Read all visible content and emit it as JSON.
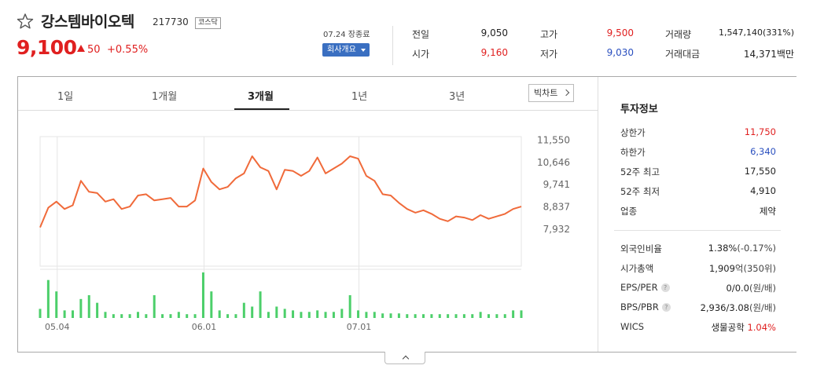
{
  "stock": {
    "name": "강스템바이오텍",
    "code": "217730",
    "market": "코스닥",
    "price": "9,100",
    "change": "50",
    "change_rate": "+0.55%",
    "date": "07.24 장종료",
    "overview_button": "회사개요"
  },
  "stats": {
    "prev_label": "전일",
    "prev_value": "9,050",
    "open_label": "시가",
    "open_value": "9,160",
    "high_label": "고가",
    "high_value": "9,500",
    "low_label": "저가",
    "low_value": "9,030",
    "volume_label": "거래량",
    "volume_value": "1,547,140(331%)",
    "amount_label": "거래대금",
    "amount_value": "14,371",
    "amount_unit": "백만"
  },
  "tabs": [
    "1일",
    "1개월",
    "3개월",
    "1년",
    "3년"
  ],
  "active_tab": "3개월",
  "big_chart_button": "빅차트",
  "invest": {
    "title": "투자정보",
    "rows": [
      {
        "label": "상한가",
        "value": "11,750",
        "color": "#e02020"
      },
      {
        "label": "하한가",
        "value": "6,340",
        "color": "#2a4fbf"
      },
      {
        "label": "52주 최고",
        "value": "17,550",
        "color": "#222222"
      },
      {
        "label": "52주 최저",
        "value": "4,910",
        "color": "#222222"
      },
      {
        "label": "업종",
        "value": "제약",
        "color": "#222222"
      }
    ],
    "rows2": [
      {
        "label": "외국인비율",
        "value": "1.38%",
        "extra": "(-0.17%)"
      },
      {
        "label": "시가총액",
        "value": "1,909",
        "extra": "억(350위)"
      },
      {
        "label": "EPS/PER",
        "value": "0/0.0",
        "extra": "(원/배)",
        "help": "?"
      },
      {
        "label": "BPS/PBR",
        "value": "2,936/3.08",
        "extra": "(원/배)",
        "help": "?"
      },
      {
        "label": "WICS",
        "value": "생물공학",
        "extra": "1.04%"
      }
    ]
  },
  "chart_data": {
    "type": "line",
    "y_ticks": [
      "11,550",
      "10,646",
      "9,741",
      "8,837",
      "7,932"
    ],
    "ylim": [
      7700,
      11700
    ],
    "x_ticks": [
      "05.04",
      "06.01",
      "07.01"
    ],
    "x_tick_index": [
      2,
      20,
      39
    ],
    "price": [
      8000,
      8800,
      9050,
      8750,
      8900,
      9900,
      9450,
      9400,
      9050,
      9150,
      8750,
      8850,
      9300,
      9350,
      9100,
      9150,
      9200,
      8850,
      8850,
      9100,
      10400,
      9850,
      9550,
      9650,
      10000,
      10200,
      10900,
      10450,
      10300,
      9550,
      10350,
      10300,
      10100,
      10300,
      10850,
      10200,
      10400,
      10600,
      10900,
      10800,
      10100,
      9900,
      9350,
      9300,
      9000,
      8750,
      8600,
      8700,
      8550,
      8350,
      8250,
      8450,
      8400,
      8300,
      8500,
      8350,
      8450,
      8550,
      8750,
      8850
    ],
    "volume": [
      12,
      50,
      35,
      10,
      10,
      25,
      30,
      20,
      8,
      5,
      5,
      5,
      8,
      5,
      30,
      5,
      5,
      8,
      5,
      5,
      60,
      35,
      10,
      5,
      5,
      20,
      15,
      35,
      8,
      15,
      12,
      10,
      8,
      8,
      10,
      8,
      8,
      12,
      30,
      10,
      8,
      8,
      6,
      6,
      6,
      5,
      5,
      5,
      5,
      5,
      5,
      5,
      5,
      5,
      8,
      5,
      5,
      5,
      10,
      10
    ],
    "volume_max": 60,
    "line_color": "#f06a3a",
    "volume_color": "#4ccf6a"
  }
}
